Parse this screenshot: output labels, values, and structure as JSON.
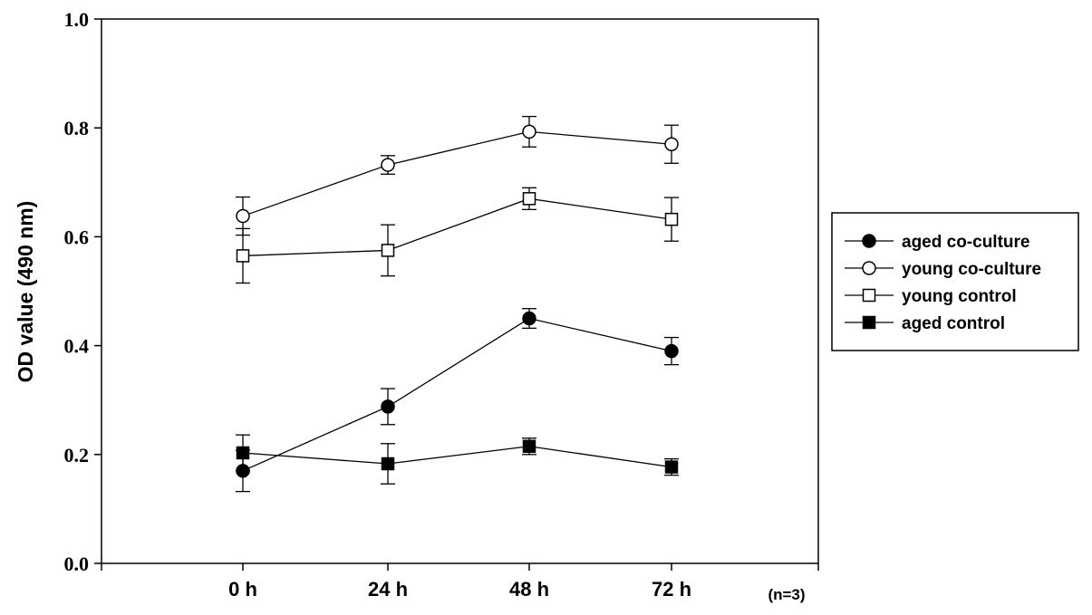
{
  "chart_data": {
    "type": "line",
    "categories": [
      "0 h",
      "24 h",
      "48 h",
      "72 h"
    ],
    "ylabel": "OD value (490 nm)",
    "ylim": [
      0.0,
      1.0
    ],
    "yticks": [
      "0.0",
      "0.2",
      "0.4",
      "0.6",
      "0.8",
      "1.0"
    ],
    "note": "(n=3)",
    "legend_position": "right",
    "series": [
      {
        "name": "aged co-culture",
        "marker": "circle-filled",
        "values": [
          0.17,
          0.288,
          0.45,
          0.39
        ],
        "errors": [
          0.038,
          0.033,
          0.018,
          0.025
        ]
      },
      {
        "name": "young co-culture",
        "marker": "circle-open",
        "values": [
          0.638,
          0.732,
          0.793,
          0.77
        ],
        "errors": [
          0.035,
          0.017,
          0.028,
          0.035
        ]
      },
      {
        "name": "young control",
        "marker": "square-open",
        "values": [
          0.565,
          0.575,
          0.67,
          0.632
        ],
        "errors": [
          0.05,
          0.047,
          0.02,
          0.04
        ]
      },
      {
        "name": "aged control",
        "marker": "square-filled",
        "values": [
          0.203,
          0.183,
          0.215,
          0.177
        ],
        "errors": [
          0.033,
          0.037,
          0.015,
          0.015
        ]
      }
    ]
  }
}
